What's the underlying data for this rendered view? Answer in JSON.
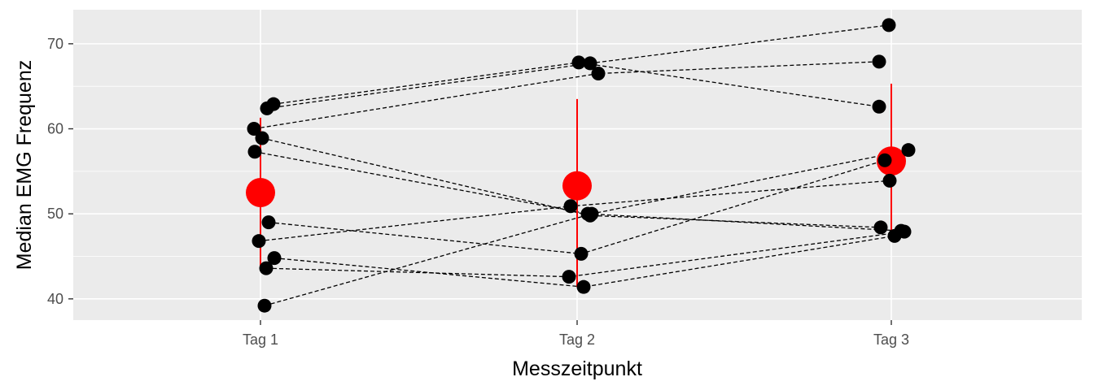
{
  "chart_data": {
    "type": "scatter",
    "xlabel": "Messzeitpunkt",
    "ylabel": "Median EMG Frequenz",
    "categories": [
      "Tag 1",
      "Tag 2",
      "Tag 3"
    ],
    "ylim": [
      37.5,
      74.0
    ],
    "yticks": [
      40,
      50,
      60,
      70
    ],
    "grid": true,
    "subjects": [
      {
        "values": [
          62.4,
          67.7,
          72.2
        ]
      },
      {
        "values": [
          62.9,
          67.8,
          62.6
        ]
      },
      {
        "values": [
          60.0,
          66.5,
          67.9
        ]
      },
      {
        "values": [
          58.9,
          49.8,
          48.4
        ]
      },
      {
        "values": [
          57.3,
          50.0,
          48.0
        ]
      },
      {
        "values": [
          49.0,
          45.3,
          56.3
        ]
      },
      {
        "values": [
          46.8,
          50.9,
          53.9
        ]
      },
      {
        "values": [
          44.8,
          41.4,
          47.4
        ]
      },
      {
        "values": [
          43.6,
          42.6,
          47.9
        ]
      },
      {
        "values": [
          39.2,
          50.0,
          57.5
        ]
      }
    ],
    "means": [
      52.5,
      53.3,
      56.2
    ],
    "mean_ranges": [
      [
        43.6,
        61.3
      ],
      [
        41.4,
        63.5
      ],
      [
        47.4,
        65.3
      ]
    ],
    "colors": {
      "panel_bg": "#ebebeb",
      "grid": "#ffffff",
      "points": "#000000",
      "mean": "#ff0000",
      "range": "#ff0000"
    }
  }
}
